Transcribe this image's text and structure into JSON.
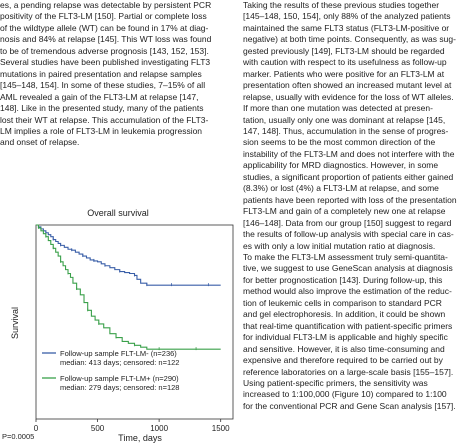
{
  "left_column": {
    "lines": [
      "es, a pending relapse was detectable by persistent PCR",
      "positivity of the FLT3-LM [150]. Partial or complete loss",
      "of the wildtype allele (WT) can be found in 17% at diag-",
      "nosis and 84% at relapse [145]. This WT loss was found",
      "to be of tremendous adverse prognosis [143, 152, 153].",
      "Several studies have been published investigating FLT3",
      "mutations in paired presentation and relapse samples",
      "[145–148, 154]. In some of these studies, 7–15% of all",
      "AML revealed a gain of the FLT3-LM at relapse [147,",
      "148]. Like in the presented study, many of the patients",
      "lost their WT at relapse. This accumulation of the FLT3-",
      "LM implies a role of FLT3-LM in leukemia progression",
      "and onset of relapse."
    ]
  },
  "right_column": {
    "lines": [
      "    Taking the results of these previous studies together",
      "[145–148, 150, 154], only 88% of the analyzed patients",
      "maintained the same FLT3 status (FLT3-LM-positive or",
      "negative) at both time points. Consequently, as was sug-",
      "gested previously [149], FLT3-LM should be regarded",
      "with caution with respect to its usefulness as follow-up",
      "marker. Patients who were positive for an FLT3-LM at",
      "presentation often showed an increased mutant level at",
      "relapse, usually with evidence for the loss of WT alleles.",
      "If more than one mutation was detected at presen-",
      "tation, usually only one was dominant at relapse [145,",
      "147, 148]. Thus, accumulation in the sense of progres-",
      "sion seems to be the most common direction of the",
      "instability of the FLT3-LM and does not interfere with the",
      "applicability for MRD diagnostics. However, in some",
      "studies, a significant proportion of patients either gained",
      "(8.3%) or lost (4%) a FLT3-LM at relapse, and some",
      "patients have been reported with loss of the presentation",
      "FLT3-LM and gain of a completely new one at relapse",
      "[146–148]. Data from our group [150] suggest to regard",
      "the results of follow-up analysis with special care in cas-",
      "es with only a low initial mutation ratio at diagnosis.",
      "    To make the FLT3-LM assessment truly semi-quantita-",
      "tive, we suggest to use GeneScan analysis at diagnosis",
      "for better prognostication [143]. During follow-up, this",
      "method would also improve the estimation of the reduc-",
      "tion of leukemic cells in comparison to standard PCR",
      "and gel electrophoresis. In addition, it could be shown",
      "that real-time quantification with patient-specific primers",
      "for individual FLT3-LM is applicable and highly specific",
      "and sensitive. However, it is also time-consuming and",
      "expensive and therefore required to be carried out by",
      "reference laboratories on a large-scale basis [155–157].",
      "Using patient-specific primers, the sensitivity was",
      "increased to 1:100,000 (Figure 10) compared to 1:100",
      "for the conventional PCR and Gene Scan analysis [157]."
    ]
  },
  "chart_data": {
    "type": "line",
    "title": "Overall survival",
    "xlabel": "Time, days",
    "ylabel": "Survival",
    "x_ticks": [
      0,
      500,
      1000,
      1500
    ],
    "xlim": [
      0,
      1600
    ],
    "ylim": [
      0,
      1
    ],
    "p_value": "P=0.0005",
    "legend_placement": "bottom",
    "series": [
      {
        "name": "Follow-up sample FLT-LM- (n=236)",
        "detail": "median: 413 days; censored: n=122",
        "color": "#3a5fa8",
        "points": [
          [
            0,
            1.0
          ],
          [
            20,
            0.99
          ],
          [
            40,
            0.98
          ],
          [
            60,
            0.97
          ],
          [
            80,
            0.96
          ],
          [
            100,
            0.95
          ],
          [
            120,
            0.94
          ],
          [
            140,
            0.925
          ],
          [
            160,
            0.915
          ],
          [
            180,
            0.905
          ],
          [
            200,
            0.895
          ],
          [
            230,
            0.885
          ],
          [
            260,
            0.875
          ],
          [
            290,
            0.87
          ],
          [
            320,
            0.86
          ],
          [
            350,
            0.85
          ],
          [
            380,
            0.84
          ],
          [
            410,
            0.83
          ],
          [
            440,
            0.82
          ],
          [
            470,
            0.815
          ],
          [
            500,
            0.81
          ],
          [
            530,
            0.8
          ],
          [
            560,
            0.79
          ],
          [
            600,
            0.78
          ],
          [
            640,
            0.77
          ],
          [
            680,
            0.76
          ],
          [
            720,
            0.755
          ],
          [
            760,
            0.75
          ],
          [
            800,
            0.74
          ],
          [
            820,
            0.72
          ],
          [
            850,
            0.7
          ],
          [
            900,
            0.69
          ],
          [
            950,
            0.69
          ],
          [
            1000,
            0.69
          ],
          [
            1100,
            0.69
          ],
          [
            1200,
            0.69
          ],
          [
            1300,
            0.69
          ],
          [
            1400,
            0.69
          ],
          [
            1500,
            0.69
          ]
        ]
      },
      {
        "name": "Follow-up sample FLT-LM+ (n=290)",
        "detail": "median: 279 days; censored: n=128",
        "color": "#3aa04a",
        "points": [
          [
            0,
            1.0
          ],
          [
            20,
            0.985
          ],
          [
            40,
            0.97
          ],
          [
            60,
            0.955
          ],
          [
            80,
            0.94
          ],
          [
            100,
            0.92
          ],
          [
            120,
            0.9
          ],
          [
            140,
            0.88
          ],
          [
            160,
            0.86
          ],
          [
            180,
            0.84
          ],
          [
            200,
            0.81
          ],
          [
            220,
            0.79
          ],
          [
            240,
            0.77
          ],
          [
            260,
            0.75
          ],
          [
            280,
            0.73
          ],
          [
            300,
            0.7
          ],
          [
            330,
            0.67
          ],
          [
            360,
            0.64
          ],
          [
            390,
            0.6
          ],
          [
            420,
            0.56
          ],
          [
            450,
            0.53
          ],
          [
            480,
            0.51
          ],
          [
            510,
            0.49
          ],
          [
            550,
            0.47
          ],
          [
            600,
            0.44
          ],
          [
            650,
            0.42
          ],
          [
            700,
            0.4
          ],
          [
            750,
            0.39
          ],
          [
            800,
            0.38
          ],
          [
            850,
            0.37
          ],
          [
            900,
            0.36
          ],
          [
            1000,
            0.36
          ],
          [
            1100,
            0.36
          ],
          [
            1200,
            0.36
          ],
          [
            1300,
            0.36
          ],
          [
            1500,
            0.36
          ]
        ]
      }
    ]
  }
}
